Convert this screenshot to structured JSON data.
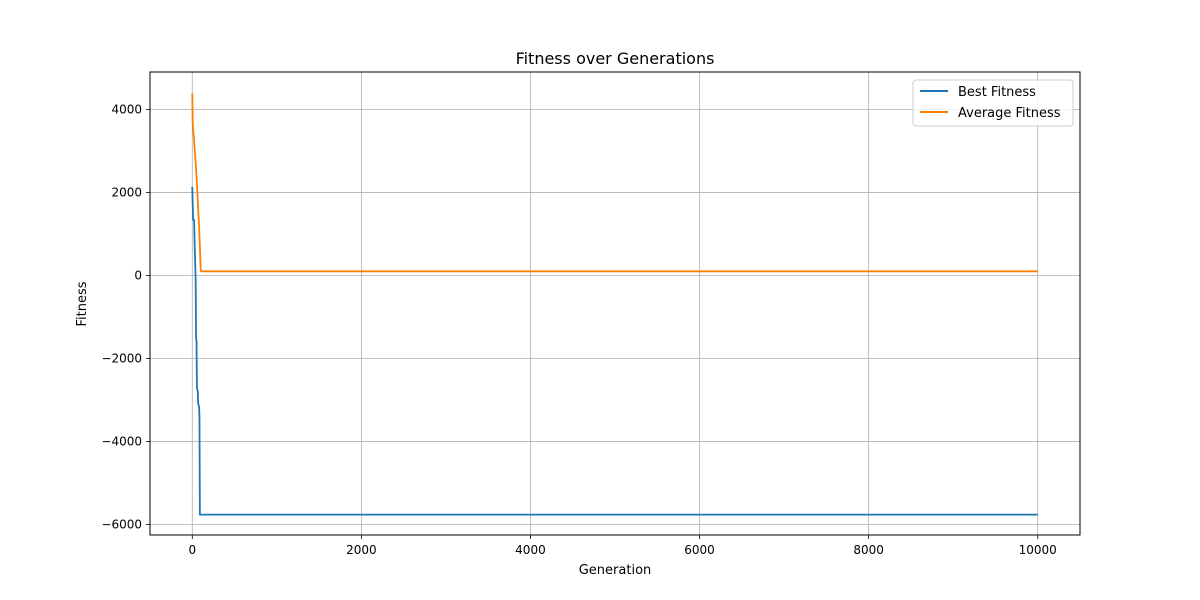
{
  "chart_data": {
    "type": "line",
    "title": "Fitness over Generations",
    "xlabel": "Generation",
    "ylabel": "Fitness",
    "xlim": [
      -500,
      10500
    ],
    "ylim": [
      -6250,
      4900
    ],
    "xticks": [
      0,
      2000,
      4000,
      6000,
      8000,
      10000
    ],
    "xtick_labels": [
      "0",
      "2000",
      "4000",
      "6000",
      "8000",
      "10000"
    ],
    "yticks": [
      -6000,
      -4000,
      -2000,
      0,
      2000,
      4000
    ],
    "ytick_labels": [
      "−6000",
      "−4000",
      "−2000",
      "0",
      "2000",
      "4000"
    ],
    "grid": true,
    "legend_position": "top-right",
    "series": [
      {
        "name": "Best Fitness",
        "color": "#1f77b4",
        "x": [
          0,
          10,
          20,
          22,
          30,
          40,
          45,
          50,
          55,
          60,
          65,
          70,
          75,
          80,
          85,
          90,
          95,
          100,
          110,
          200,
          1000,
          5000,
          10000
        ],
        "y": [
          2130,
          1340,
          1340,
          1320,
          600,
          -100,
          -1530,
          -1550,
          -2700,
          -2750,
          -2780,
          -3100,
          -3120,
          -3150,
          -3400,
          -5760,
          -5760,
          -5760,
          -5760,
          -5760,
          -5760,
          -5760,
          -5760
        ]
      },
      {
        "name": "Average Fitness",
        "color": "#ff7f00",
        "x": [
          0,
          5,
          10,
          20,
          30,
          40,
          50,
          60,
          70,
          80,
          90,
          100,
          110,
          200,
          500,
          1000,
          2000,
          3000,
          4000,
          5000,
          6000,
          7000,
          8000,
          9000,
          10000
        ],
        "y": [
          4380,
          3700,
          3500,
          3300,
          3000,
          2700,
          2400,
          2000,
          1600,
          1200,
          700,
          110,
          100,
          100,
          100,
          100,
          100,
          100,
          100,
          100,
          100,
          100,
          100,
          100,
          100
        ]
      }
    ]
  }
}
